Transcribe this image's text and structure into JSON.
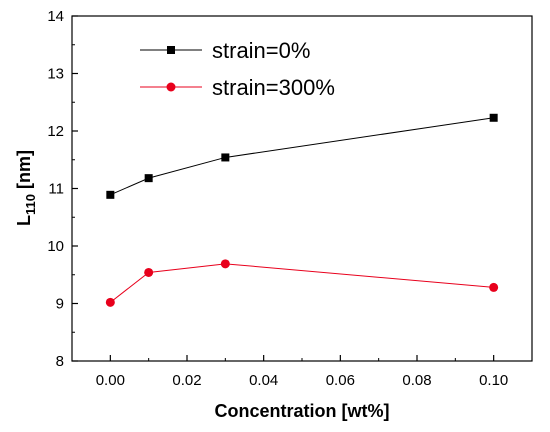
{
  "chart_data": {
    "type": "line",
    "xlabel": "Concentration [wt%]",
    "ylabel_main": "L",
    "ylabel_sub": "110",
    "ylabel_unit": " [nm]",
    "xlim": [
      -0.01,
      0.11
    ],
    "ylim": [
      8,
      14
    ],
    "x_ticks": [
      0.0,
      0.02,
      0.04,
      0.06,
      0.08,
      0.1
    ],
    "x_tick_labels": [
      "0.00",
      "0.02",
      "0.04",
      "0.06",
      "0.08",
      "0.10"
    ],
    "y_ticks": [
      8,
      9,
      10,
      11,
      12,
      13,
      14
    ],
    "y_tick_labels": [
      "8",
      "9",
      "10",
      "11",
      "12",
      "13",
      "14"
    ],
    "grid": false,
    "legend_position": "top-left",
    "series": [
      {
        "name": "strain=0%",
        "color": "#000000",
        "marker": "square",
        "x": [
          0.0,
          0.01,
          0.03,
          0.1
        ],
        "y": [
          10.89,
          11.18,
          11.54,
          12.23
        ]
      },
      {
        "name": "strain=300%",
        "color": "#e8001c",
        "marker": "circle",
        "x": [
          0.0,
          0.01,
          0.03,
          0.1
        ],
        "y": [
          9.02,
          9.54,
          9.69,
          9.28
        ]
      }
    ]
  }
}
